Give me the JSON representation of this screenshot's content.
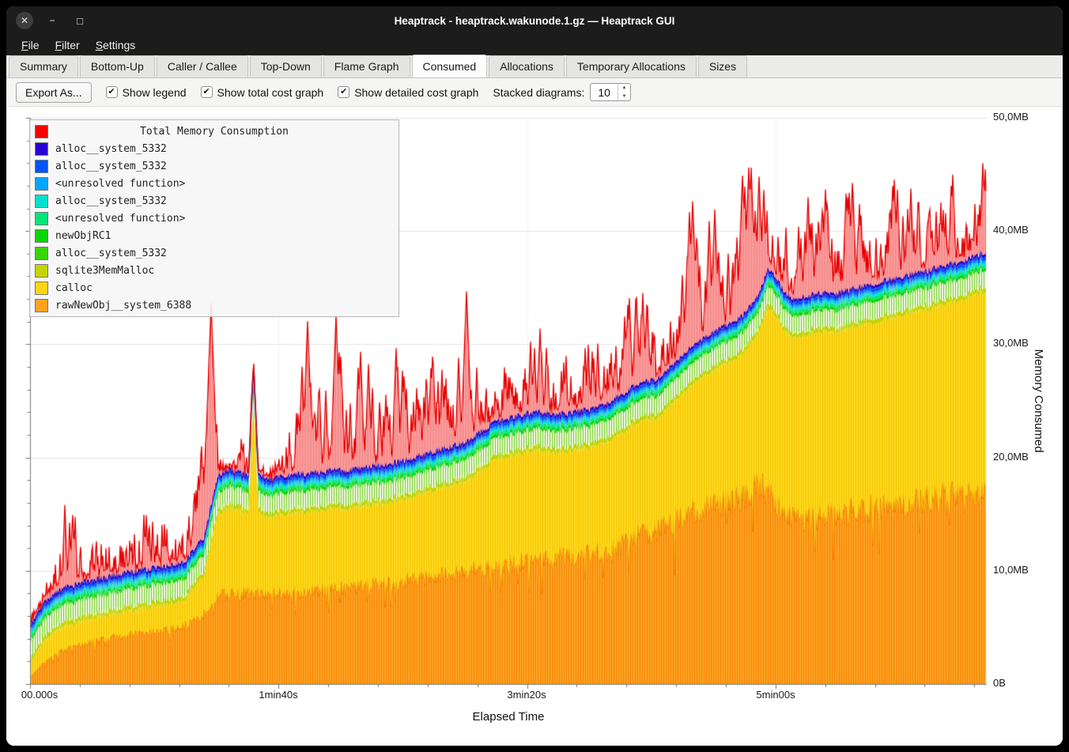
{
  "window": {
    "title": "Heaptrack - heaptrack.wakunode.1.gz — Heaptrack GUI"
  },
  "icons": {
    "close": "✕",
    "minimize": "−",
    "maximize": "□",
    "check": "✔",
    "spinner_up": "▲",
    "spinner_down": "▼"
  },
  "menu": {
    "items": [
      {
        "label": "File"
      },
      {
        "label": "Filter"
      },
      {
        "label": "Settings"
      }
    ]
  },
  "tabs": [
    {
      "label": "Summary"
    },
    {
      "label": "Bottom-Up"
    },
    {
      "label": "Caller / Callee"
    },
    {
      "label": "Top-Down"
    },
    {
      "label": "Flame Graph"
    },
    {
      "label": "Consumed",
      "active": true
    },
    {
      "label": "Allocations"
    },
    {
      "label": "Temporary Allocations"
    },
    {
      "label": "Sizes"
    }
  ],
  "toolbar": {
    "export_button": "Export As...",
    "checkboxes": [
      {
        "label": "Show legend",
        "checked": true
      },
      {
        "label": "Show total cost graph",
        "checked": true
      },
      {
        "label": "Show detailed cost graph",
        "checked": true
      }
    ],
    "stacked_label": "Stacked diagrams:",
    "stacked_value": "10"
  },
  "chart_data": {
    "type": "area",
    "stacked": true,
    "title": "Total Memory Consumption",
    "xlabel": "Elapsed Time",
    "ylabel": "Memory Consumed",
    "x_tick_labels": [
      "00.000s",
      "1min40s",
      "3min20s",
      "5min00s"
    ],
    "x_tick_seconds": [
      0,
      100,
      200,
      300
    ],
    "x_max_seconds": 385,
    "y_tick_labels": [
      "0B",
      "10,0MB",
      "20,0MB",
      "30,0MB",
      "40,0MB",
      "50,0MB"
    ],
    "y_tick_mb": [
      0,
      10,
      20,
      30,
      40,
      50
    ],
    "y_max_mb": 50,
    "legend": [
      {
        "label": "Total Memory Consumption",
        "color": "#fe0000",
        "title": true
      },
      {
        "label": "alloc__system_5332",
        "color": "#2a00d5"
      },
      {
        "label": "alloc__system_5332",
        "color": "#0353ff"
      },
      {
        "label": "<unresolved function>",
        "color": "#00a6ff"
      },
      {
        "label": "alloc__system_5332",
        "color": "#00e0cf"
      },
      {
        "label": "<unresolved function>",
        "color": "#00e67a"
      },
      {
        "label": "newObjRC1",
        "color": "#0ad50a"
      },
      {
        "label": "alloc__system_5332",
        "color": "#3ad500"
      },
      {
        "label": "sqlite3MemMalloc",
        "color": "#c3d500"
      },
      {
        "label": "calloc",
        "color": "#ffd514"
      },
      {
        "label": "rawNewObj__system_6388",
        "color": "#ffa21f"
      }
    ],
    "series_stack_bottom_to_top": [
      "rawNewObj__system_6388",
      "calloc",
      "sqlite3MemMalloc",
      "alloc__system_5332",
      "newObjRC1",
      "<unresolved function>",
      "alloc__system_5332",
      "<unresolved function>",
      "alloc__system_5332",
      "alloc__system_5332"
    ],
    "samples": {
      "t_seconds": [
        0,
        5,
        10,
        15,
        22,
        30,
        38,
        46,
        55,
        62,
        70,
        73,
        76,
        80,
        85,
        88,
        90,
        92,
        96,
        100,
        106,
        112,
        118,
        123,
        128,
        134,
        140,
        146,
        152,
        158,
        164,
        170,
        176,
        181,
        186,
        191,
        196,
        201,
        206,
        211,
        216,
        221,
        226,
        231,
        236,
        241,
        246,
        251,
        256,
        261,
        266,
        271,
        275,
        279,
        283,
        287,
        291,
        294,
        297,
        300,
        304,
        308,
        312,
        316,
        320,
        324,
        328,
        332,
        336,
        340,
        344,
        348,
        352,
        356,
        360,
        364,
        368,
        372,
        376,
        380,
        385
      ],
      "rawNewObj_mb": [
        0.6,
        1.8,
        2.6,
        3.2,
        3.6,
        4.0,
        4.3,
        4.6,
        4.8,
        5.1,
        6.2,
        7.0,
        7.8,
        8.0,
        8.0,
        8.0,
        8.0,
        8.0,
        7.8,
        7.9,
        8.1,
        8.2,
        8.4,
        8.5,
        8.5,
        8.7,
        8.9,
        9.0,
        9.2,
        9.4,
        9.6,
        9.8,
        10.0,
        10.1,
        10.3,
        10.5,
        10.7,
        10.9,
        11.0,
        11.1,
        11.2,
        11.3,
        11.5,
        11.6,
        11.9,
        13.0,
        13.6,
        13.4,
        14.0,
        14.6,
        15.1,
        15.5,
        15.8,
        16.0,
        16.2,
        16.6,
        17.2,
        17.6,
        17.0,
        16.2,
        15.3,
        14.6,
        14.5,
        14.8,
        15.0,
        15.0,
        15.1,
        15.3,
        15.4,
        15.6,
        15.8,
        15.9,
        16.0,
        16.2,
        16.3,
        16.5,
        16.6,
        16.8,
        16.9,
        17.0,
        17.1
      ],
      "calloc_stack_top_mb": [
        1.8,
        3.6,
        4.6,
        5.2,
        5.6,
        6.0,
        6.4,
        6.7,
        7.0,
        7.4,
        9.5,
        12.5,
        15.2,
        15.5,
        15.2,
        15.0,
        25.0,
        15.0,
        14.6,
        14.9,
        15.1,
        15.2,
        15.4,
        15.5,
        15.4,
        15.7,
        15.9,
        16.1,
        16.4,
        16.8,
        17.2,
        17.6,
        18.0,
        18.8,
        19.6,
        20.0,
        20.3,
        20.5,
        20.6,
        20.4,
        20.5,
        20.7,
        20.9,
        21.2,
        21.8,
        22.6,
        23.2,
        23.4,
        24.1,
        25.2,
        26.3,
        27.1,
        27.6,
        28.1,
        28.6,
        29.2,
        30.2,
        31.2,
        33.4,
        32.6,
        31.2,
        30.6,
        30.8,
        31.0,
        31.2,
        31.0,
        31.3,
        31.6,
        31.7,
        31.9,
        32.2,
        32.4,
        32.6,
        32.9,
        33.0,
        33.3,
        33.5,
        33.8,
        34.0,
        34.4,
        34.8
      ],
      "total_peak_envelope_mb": [
        6,
        8,
        11,
        17,
        12,
        13,
        12,
        15,
        14,
        13,
        22,
        34,
        20,
        19,
        22,
        20,
        29,
        19.5,
        19,
        20,
        23,
        34,
        26,
        35,
        24,
        31,
        24,
        31,
        26,
        27,
        31,
        26,
        35,
        26,
        27,
        28,
        26,
        30,
        32,
        27,
        29,
        27,
        33,
        28,
        30,
        34,
        35,
        32,
        31,
        34,
        44,
        36,
        44,
        36,
        40,
        45,
        46,
        46,
        42,
        39,
        43,
        39,
        44,
        41,
        45,
        38,
        43,
        45,
        40,
        44,
        38,
        45,
        41,
        46,
        39,
        45,
        42,
        46,
        40,
        46,
        46
      ]
    },
    "thin_bands_above_calloc": [
      {
        "name": "sqlite3MemMalloc",
        "color": "#c3d500",
        "mb": 0.4
      },
      {
        "name": "alloc__system_5332",
        "color": "#3ad500",
        "mb": 1.5,
        "hatch": true
      },
      {
        "name": "newObjRC1",
        "color": "#0ad50a",
        "mb": 0.3
      },
      {
        "name": "<unresolved function>",
        "color": "#00e67a",
        "mb": 0.25
      },
      {
        "name": "alloc__system_5332",
        "color": "#00e0cf",
        "mb": 0.2
      },
      {
        "name": "<unresolved function>",
        "color": "#00a6ff",
        "mb": 0.2
      },
      {
        "name": "alloc__system_5332",
        "color": "#0353ff",
        "mb": 0.3
      },
      {
        "name": "alloc__system_5332",
        "color": "#2a00d5",
        "mb": 0.25
      }
    ],
    "colors": {
      "orange_fill": "#ffa524",
      "orange_hatch": "#f28200",
      "orange_line": "#f07800",
      "yellow_fill": "#ffd91e",
      "yellow_hatch": "#f0c400",
      "pale_green_fill": "#f0fae0",
      "pale_green_hatch": "#6cc81e",
      "red_fill": "#ffe4e4",
      "red_hatch": "#ef4444",
      "red_line": "#e60000",
      "blue_line": "#1500c8",
      "grid": "#e4e4e4",
      "axis": "#777777"
    }
  }
}
